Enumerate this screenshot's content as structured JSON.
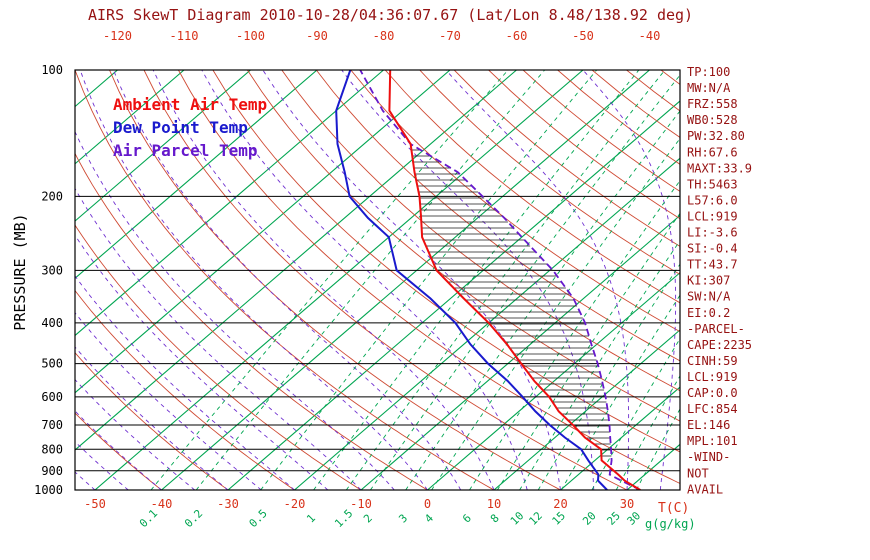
{
  "title": {
    "text": "AIRS SkewT Diagram 2010-10-28/04:36:07.67 (Lat/Lon 8.48/138.92 deg)"
  },
  "legend": {
    "ambient": "Ambient Air Temp",
    "dew": "Dew Point Temp",
    "parcel": "Air Parcel Temp"
  },
  "axis": {
    "pressure_label": "PRESSURE (MB)",
    "temp_unit_label": "T(C)",
    "mixing_unit_label": "g(g/kg)"
  },
  "stats": [
    "TP:100",
    "MW:N/A",
    "FRZ:558",
    "WB0:528",
    "PW:32.80",
    "RH:67.6",
    "MAXT:33.9",
    "TH:5463",
    "L57:6.0",
    "LCL:919",
    "LI:-3.6",
    "SI:-0.4",
    "TT:43.7",
    "KI:307",
    "SW:N/A",
    "EI:0.2",
    "-PARCEL-",
    "CAPE:2235",
    "CINH:59",
    "LCL:919",
    "CAP:0.0",
    "LFC:854",
    "EL:146",
    "MPL:101",
    "-WIND-",
    "NOT",
    "AVAIL"
  ],
  "colors": {
    "title_stats": "#961212",
    "axis_red": "#d8321a",
    "temp_curve": "#ee0f0f",
    "dew_curve": "#1a1acd",
    "parcel": "#6619cc",
    "moist_adiabat": "#6f2fd0",
    "dry_adiabat": "#cf4a33",
    "green": "#00a551",
    "hatch": "#1a1a1a",
    "black": "#000000"
  },
  "chart_data": {
    "type": "line",
    "variant": "skew-t log-p thermodynamic diagram",
    "title": "AIRS SkewT Diagram 2010-10-28/04:36:07.67 (Lat/Lon 8.48/138.92 deg)",
    "pressure_axis": {
      "min": 100,
      "max": 1000,
      "scale": "log",
      "unit": "MB"
    },
    "pressure_ticks": [
      100,
      200,
      300,
      400,
      500,
      600,
      700,
      800,
      900,
      1000
    ],
    "top_temp_ticks": [
      -120,
      -110,
      -100,
      -90,
      -80,
      -70,
      -60,
      -50,
      -40
    ],
    "bottom_temp_ticks": [
      -50,
      -40,
      -30,
      -20,
      -10,
      0,
      10,
      20,
      30
    ],
    "mixing_ratio_ticks": [
      0.1,
      0.2,
      0.5,
      1,
      1.5,
      2,
      3,
      4,
      6,
      8,
      10,
      12,
      15,
      20,
      25,
      30
    ],
    "isotherms_c": {
      "min": -120,
      "max": 40,
      "step": 10
    },
    "dry_adiabats_c": {
      "min": -40,
      "max": 190,
      "step": 10
    },
    "moist_adiabats_c": {
      "min": -60,
      "max": 40,
      "step": 5
    },
    "series": [
      {
        "name": "Ambient Air Temp",
        "color_key": "temp_curve",
        "pressure_mb": [
          1000,
          950,
          919,
          850,
          800,
          750,
          700,
          650,
          600,
          550,
          500,
          450,
          400,
          350,
          300,
          250,
          225,
          200,
          175,
          150,
          125,
          100
        ],
        "temp_c": [
          32,
          28,
          26,
          21,
          19,
          14.5,
          10.5,
          6,
          2,
          -3,
          -8,
          -13.5,
          -20,
          -28,
          -37,
          -45,
          -48.5,
          -52.5,
          -57.5,
          -63,
          -72,
          -79
        ]
      },
      {
        "name": "Dew Point Temp",
        "color_key": "dew_curve",
        "pressure_mb": [
          1000,
          950,
          919,
          850,
          800,
          750,
          700,
          650,
          600,
          550,
          500,
          450,
          400,
          350,
          300,
          250,
          225,
          200,
          175,
          150,
          125,
          100
        ],
        "temp_c": [
          27,
          24,
          23,
          19,
          16,
          11.5,
          7,
          2.5,
          -2,
          -7,
          -13,
          -19,
          -25,
          -33,
          -43,
          -50,
          -56.5,
          -63,
          -68,
          -74,
          -80,
          -85
        ]
      },
      {
        "name": "Air Parcel Temp",
        "color_key": "parcel",
        "pressure_mb": [
          1000,
          950,
          919,
          850,
          800,
          750,
          700,
          650,
          600,
          550,
          500,
          450,
          400,
          350,
          300,
          250,
          225,
          200,
          175,
          150,
          125,
          100
        ],
        "temp_c": [
          32,
          27.5,
          24.7,
          22.5,
          20.5,
          18.3,
          16,
          13.4,
          10.5,
          7.2,
          3.5,
          -0.8,
          -5.5,
          -11.5,
          -19.5,
          -30,
          -36,
          -43,
          -51,
          -63,
          -73,
          -83.5
        ]
      }
    ],
    "cape_hatch": {
      "p_bottom": 854,
      "p_top": 150
    }
  }
}
